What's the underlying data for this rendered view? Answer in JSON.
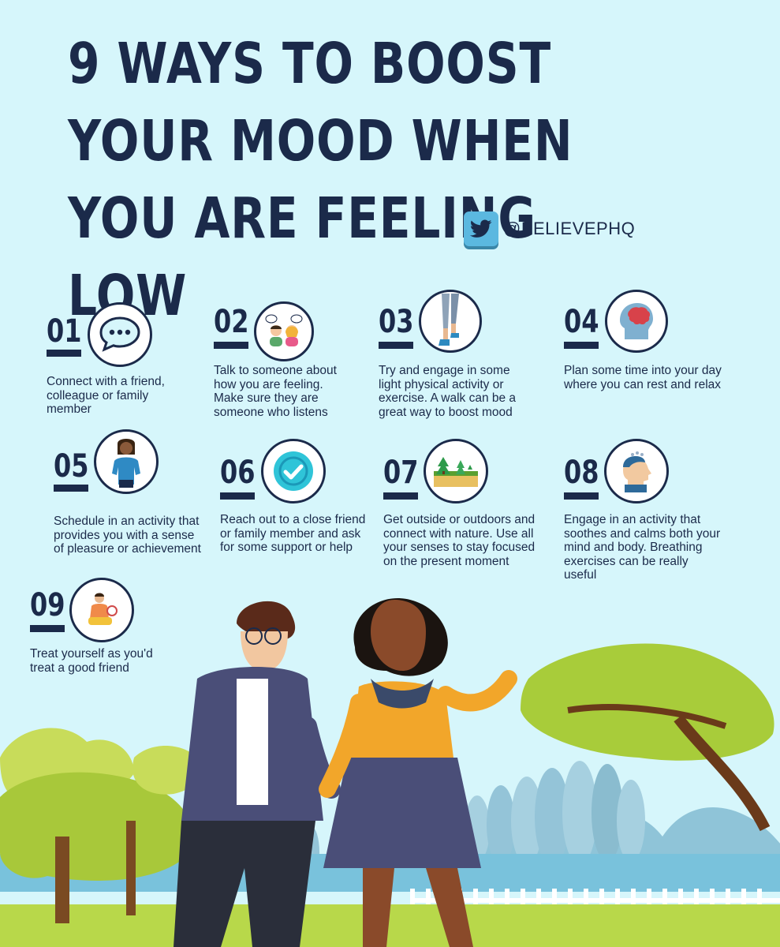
{
  "title": "9 WAYS TO BOOST YOUR MOOD WHEN YOU ARE FEELING LOW",
  "social": {
    "icon": "twitter-icon",
    "handle": "@BELIEVEPHQ"
  },
  "colors": {
    "background": "#d6f6fb",
    "navy": "#1b2a4a",
    "twitter": "#5bb8e0"
  },
  "tips": [
    {
      "number": "01",
      "icon": "speech-bubble-icon",
      "text": "Connect with a friend, colleague or family member"
    },
    {
      "number": "02",
      "icon": "two-people-talking-icon",
      "text": "Talk to someone about how you are feeling. Make sure they are someone who listens"
    },
    {
      "number": "03",
      "icon": "walking-legs-icon",
      "text": "Try and engage in some light physical activity or exercise. A walk can be a great way to boost mood"
    },
    {
      "number": "04",
      "icon": "brain-head-icon",
      "text": "Plan some time into your day where you can rest and relax"
    },
    {
      "number": "05",
      "icon": "happy-person-icon",
      "text": "Schedule in an activity that provides you with a sense of pleasure or achievement"
    },
    {
      "number": "06",
      "icon": "checkmark-icon",
      "text": "Reach out to a close friend or family member and ask for some support or help"
    },
    {
      "number": "07",
      "icon": "nature-trees-icon",
      "text": "Get outside or outdoors and connect with nature. Use all your senses to stay focused on the present moment"
    },
    {
      "number": "08",
      "icon": "calm-head-icon",
      "text": "Engage in an activity that soothes and calms both your mind and body. Breathing exercises can be really useful"
    },
    {
      "number": "09",
      "icon": "self-care-person-icon",
      "text": "Treat yourself as you'd treat a good friend"
    }
  ]
}
